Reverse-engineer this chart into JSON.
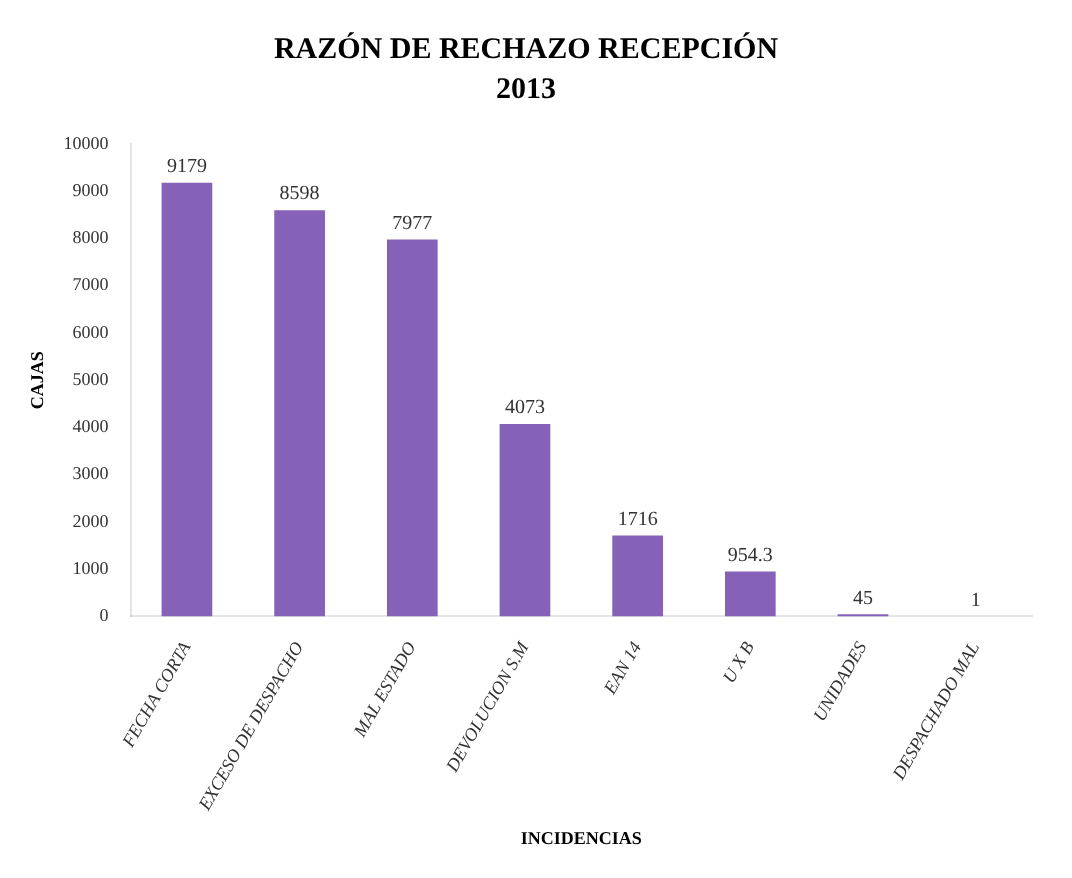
{
  "chart_data": {
    "type": "bar",
    "title": "RAZÓN DE RECHAZO RECEPCIÓN",
    "subtitle": "2013",
    "xlabel": "INCIDENCIAS",
    "ylabel": "CAJAS",
    "categories": [
      "FECHA CORTA",
      "EXCESO DE DESPACHO",
      "MAL ESTADO",
      "DEVOLUCION S.M",
      "EAN 14",
      "U X B",
      "UNIDADES",
      "DESPACHADO MAL"
    ],
    "values": [
      9179,
      8598,
      7977,
      4073,
      1716,
      954.3,
      45,
      1
    ],
    "color": "#8562b8",
    "ylim": [
      0,
      10000
    ],
    "yticks": [
      0,
      1000,
      2000,
      3000,
      4000,
      5000,
      6000,
      7000,
      8000,
      9000,
      10000
    ],
    "grid": false,
    "legend": false,
    "data_labels": true
  }
}
